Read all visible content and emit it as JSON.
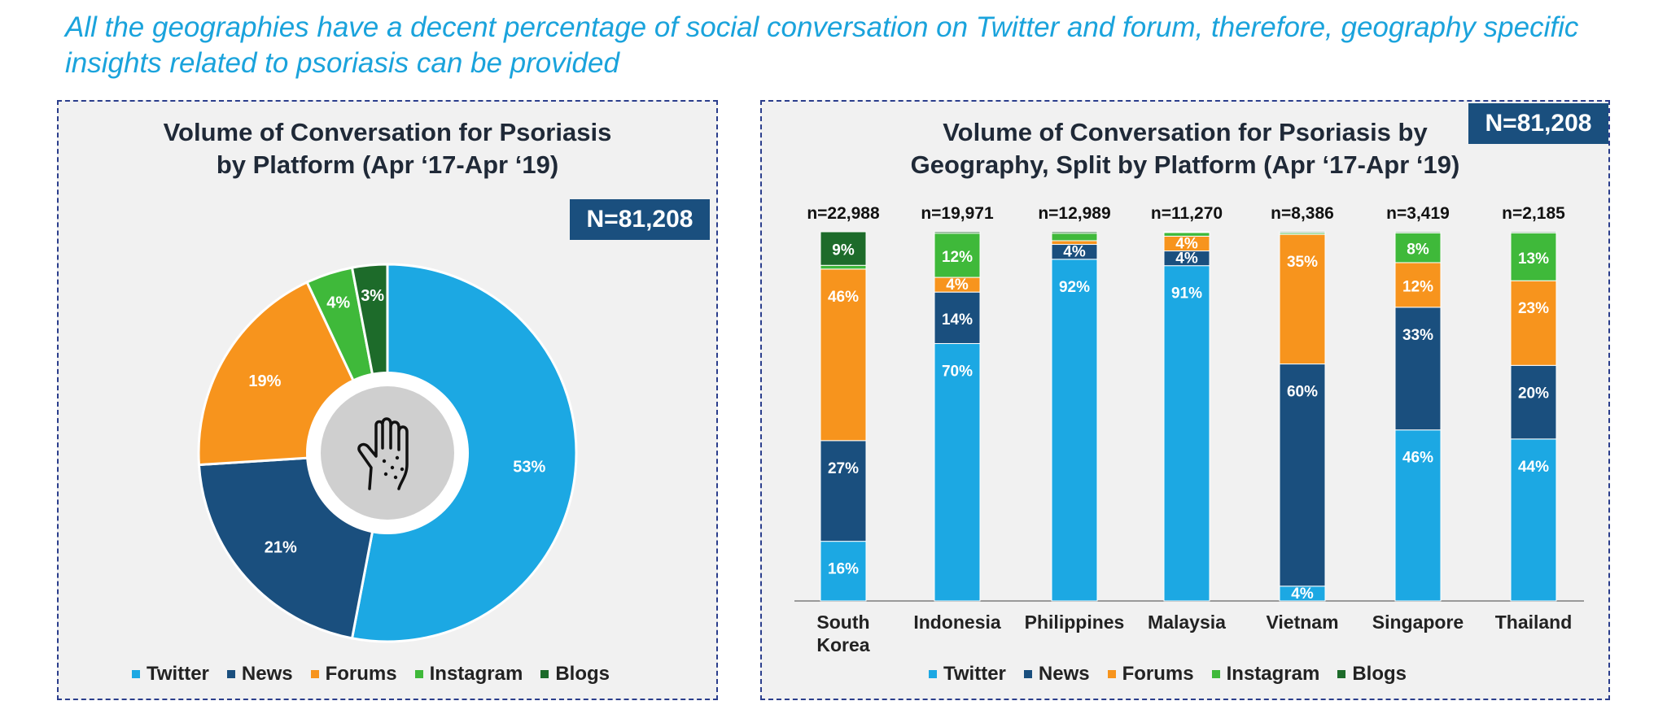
{
  "headline": "All the geographies have a decent percentage of social conversation on Twitter and forum, therefore, geography specific insights related to psoriasis can be provided",
  "colors": {
    "Twitter": "#1ca8e3",
    "News": "#1a4f7e",
    "Forums": "#f7941d",
    "Instagram": "#3fb93a",
    "Blogs": "#1d6b2a"
  },
  "legend": [
    "Twitter",
    "News",
    "Forums",
    "Instagram",
    "Blogs"
  ],
  "center_icon": "hand-rash-icon",
  "chart_data": [
    {
      "type": "pie",
      "title_line1": "Volume of Conversation for Psoriasis",
      "title_line2": "by Platform (Apr ‘17-Apr ‘19)",
      "total_label": "N=81,208",
      "slices": [
        {
          "name": "Twitter",
          "value": 53,
          "label": "53%"
        },
        {
          "name": "News",
          "value": 21,
          "label": "21%"
        },
        {
          "name": "Forums",
          "value": 19,
          "label": "19%"
        },
        {
          "name": "Instagram",
          "value": 4,
          "label": "4%"
        },
        {
          "name": "Blogs",
          "value": 3,
          "label": "3%"
        }
      ]
    },
    {
      "type": "bar",
      "stacked": true,
      "title_line1": "Volume of Conversation for Psoriasis by",
      "title_line2": "Geography, Split by Platform (Apr ‘17-Apr ‘19)",
      "total_label": "N=81,208",
      "categories": [
        {
          "lines": [
            "South",
            "Korea"
          ],
          "n": "n=22,988"
        },
        {
          "lines": [
            "Indonesia"
          ],
          "n": "n=19,971"
        },
        {
          "lines": [
            "Philippines"
          ],
          "n": "n=12,989"
        },
        {
          "lines": [
            "Malaysia"
          ],
          "n": "n=11,270"
        },
        {
          "lines": [
            "Vietnam"
          ],
          "n": "n=8,386"
        },
        {
          "lines": [
            "Singapore"
          ],
          "n": "n=3,419"
        },
        {
          "lines": [
            "Thailand"
          ],
          "n": "n=2,185"
        }
      ],
      "series": [
        {
          "name": "Twitter",
          "values": [
            16,
            70,
            92,
            91,
            4,
            46,
            44
          ],
          "labels": [
            "16%",
            "70%",
            "92%",
            "91%",
            "4%",
            "46%",
            "44%"
          ]
        },
        {
          "name": "News",
          "values": [
            27,
            14,
            4,
            4,
            60,
            33,
            20
          ],
          "labels": [
            "27%",
            "14%",
            "4%",
            "4%",
            "60%",
            "33%",
            "20%"
          ]
        },
        {
          "name": "Forums",
          "values": [
            46,
            4,
            1,
            4,
            35,
            12,
            23
          ],
          "labels": [
            "46%",
            "4%",
            "",
            "4%",
            "35%",
            "12%",
            "23%"
          ]
        },
        {
          "name": "Instagram",
          "values": [
            1,
            12,
            2,
            1,
            0.4,
            8,
            13
          ],
          "labels": [
            "",
            "12%",
            "",
            "",
            "",
            "8%",
            "13%"
          ]
        },
        {
          "name": "Blogs",
          "values": [
            9,
            0.4,
            0.4,
            0.2,
            0.3,
            0.3,
            0.3
          ],
          "labels": [
            "9%",
            "",
            "",
            "",
            "",
            "",
            ""
          ]
        }
      ]
    }
  ]
}
